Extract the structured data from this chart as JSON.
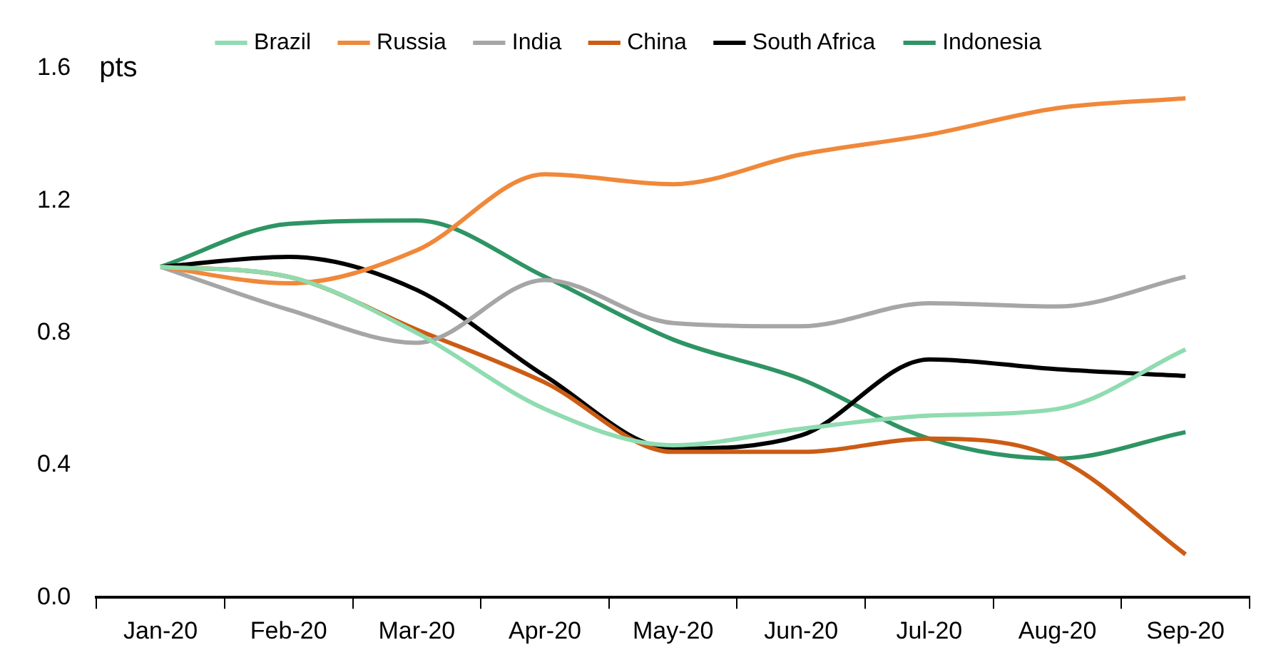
{
  "chart_data": {
    "type": "line",
    "ylabel": "pts",
    "categories": [
      "Jan-20",
      "Feb-20",
      "Mar-20",
      "Apr-20",
      "May-20",
      "Jun-20",
      "Jul-20",
      "Aug-20",
      "Sep-20"
    ],
    "series": [
      {
        "name": "Brazil",
        "color": "#8fdcb0",
        "values": [
          1.0,
          0.97,
          0.8,
          0.57,
          0.46,
          0.51,
          0.55,
          0.57,
          0.75
        ]
      },
      {
        "name": "Russia",
        "color": "#f0883a",
        "values": [
          1.0,
          0.95,
          1.05,
          1.28,
          1.25,
          1.34,
          1.4,
          1.48,
          1.51
        ]
      },
      {
        "name": "India",
        "color": "#a6a6a6",
        "values": [
          1.0,
          0.87,
          0.77,
          0.96,
          0.83,
          0.82,
          0.89,
          0.88,
          0.97
        ]
      },
      {
        "name": "China",
        "color": "#cc5c14",
        "values": [
          1.0,
          0.97,
          0.81,
          0.65,
          0.44,
          0.44,
          0.48,
          0.42,
          0.13
        ]
      },
      {
        "name": "South Africa",
        "color": "#000000",
        "values": [
          1.0,
          1.03,
          0.93,
          0.67,
          0.45,
          0.49,
          0.72,
          0.69,
          0.67
        ]
      },
      {
        "name": "Indonesia",
        "color": "#2e9464",
        "values": [
          1.0,
          1.13,
          1.14,
          0.97,
          0.78,
          0.66,
          0.48,
          0.42,
          0.5
        ]
      }
    ],
    "ylim": [
      0,
      1.6
    ],
    "yticks": [
      {
        "value": 0,
        "label": "0.0"
      },
      {
        "value": 0.4,
        "label": "0.4"
      },
      {
        "value": 0.8,
        "label": "0.8"
      },
      {
        "value": 1.2,
        "label": "1.2"
      },
      {
        "value": 1.6,
        "label": "1.6"
      }
    ],
    "grid": false,
    "legend": "top",
    "marker": "none",
    "line_style": "solid"
  }
}
